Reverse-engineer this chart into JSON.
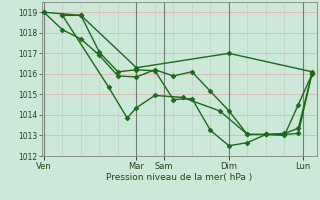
{
  "title": "",
  "xlabel": "Pression niveau de la mer( hPa )",
  "ylabel": "",
  "bg_color": "#cce8d8",
  "grid_color_h": "#e8b0b0",
  "grid_color_v": "#c0c8c0",
  "day_line_color": "#708070",
  "line_color": "#1a6b1a",
  "marker": "D",
  "markersize": 2.5,
  "linewidth": 1.0,
  "ylim": [
    1012,
    1019.5
  ],
  "xlim": [
    -1,
    118
  ],
  "xtick_labels": [
    "Ven",
    "Mar",
    "Sam",
    "Dim",
    "Lun"
  ],
  "xtick_positions": [
    0,
    40,
    52,
    80,
    112
  ],
  "ytick_values": [
    1012,
    1013,
    1014,
    1015,
    1016,
    1017,
    1018,
    1019
  ],
  "series": [
    [
      [
        0,
        1019.0
      ],
      [
        8,
        1018.15
      ],
      [
        16,
        1017.7
      ],
      [
        24,
        1016.9
      ],
      [
        32,
        1015.9
      ],
      [
        40,
        1015.85
      ],
      [
        48,
        1016.2
      ],
      [
        56,
        1015.9
      ],
      [
        64,
        1016.1
      ],
      [
        72,
        1015.15
      ],
      [
        80,
        1014.2
      ],
      [
        88,
        1013.05
      ],
      [
        96,
        1013.05
      ],
      [
        104,
        1013.05
      ],
      [
        110,
        1013.1
      ],
      [
        116,
        1016.05
      ]
    ],
    [
      [
        8,
        1018.85
      ],
      [
        16,
        1018.85
      ],
      [
        24,
        1017.05
      ],
      [
        32,
        1016.1
      ],
      [
        40,
        1016.2
      ],
      [
        48,
        1016.15
      ],
      [
        56,
        1014.75
      ],
      [
        64,
        1014.8
      ],
      [
        72,
        1013.25
      ],
      [
        80,
        1012.5
      ],
      [
        88,
        1012.65
      ],
      [
        96,
        1013.05
      ],
      [
        104,
        1013.0
      ],
      [
        110,
        1014.5
      ],
      [
        116,
        1016.0
      ]
    ],
    [
      [
        0,
        1019.0
      ],
      [
        16,
        1018.85
      ],
      [
        40,
        1016.3
      ],
      [
        80,
        1017.0
      ],
      [
        116,
        1016.1
      ]
    ],
    [
      [
        8,
        1018.85
      ],
      [
        28,
        1015.35
      ],
      [
        36,
        1013.85
      ],
      [
        40,
        1014.35
      ],
      [
        48,
        1014.95
      ],
      [
        60,
        1014.85
      ],
      [
        76,
        1014.2
      ],
      [
        88,
        1013.05
      ],
      [
        96,
        1013.05
      ],
      [
        104,
        1013.1
      ],
      [
        110,
        1013.35
      ],
      [
        116,
        1016.05
      ]
    ]
  ]
}
